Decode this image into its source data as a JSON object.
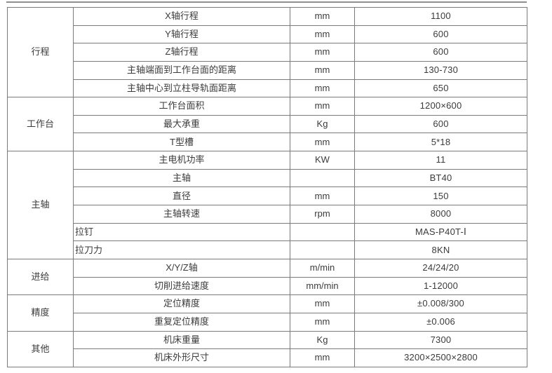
{
  "colors": {
    "background": "#ffffff",
    "border_inner": "#7b7b7b",
    "border_outer": "#5f5f5f",
    "text": "#3b3b3b"
  },
  "table": {
    "sections": [
      {
        "category": "行程",
        "rows": [
          {
            "parameter": "X轴行程",
            "unit": "mm",
            "value": "1100"
          },
          {
            "parameter": "Y轴行程",
            "unit": "mm",
            "value": "600"
          },
          {
            "parameter": "Z轴行程",
            "unit": "mm",
            "value": "600"
          },
          {
            "parameter": "主轴端面到工作台面的距离",
            "unit": "mm",
            "value": "130-730"
          },
          {
            "parameter": "主轴中心到立柱导轨面距离",
            "unit": "mm",
            "value": "650"
          }
        ]
      },
      {
        "category": "工作台",
        "rows": [
          {
            "parameter": "工作台面积",
            "unit": "mm",
            "value": "1200×600"
          },
          {
            "parameter": "最大承重",
            "unit": "Kg",
            "value": "600"
          },
          {
            "parameter": "T型槽",
            "unit": "mm",
            "value": "5*18"
          }
        ]
      },
      {
        "category": "主轴",
        "rows": [
          {
            "parameter": "主电机功率",
            "unit": "KW",
            "value": "11"
          },
          {
            "parameter": "主轴",
            "unit": "",
            "value": "BT40"
          },
          {
            "parameter": "直径",
            "unit": "mm",
            "value": "150"
          },
          {
            "parameter": "主轴转速",
            "unit": "rpm",
            "value": "8000"
          },
          {
            "parameter": "拉钉",
            "unit": "",
            "value": "MAS-P40T-Ⅰ",
            "param_align": "left"
          },
          {
            "parameter": "拉刀力",
            "unit": "",
            "value": "8KN",
            "param_align": "left"
          }
        ]
      },
      {
        "category": "进给",
        "rows": [
          {
            "parameter": "X/Y/Z轴",
            "unit": "m/min",
            "value": "24/24/20"
          },
          {
            "parameter": "切削进给速度",
            "unit": "mm/min",
            "value": "1-12000"
          }
        ]
      },
      {
        "category": "精度",
        "rows": [
          {
            "parameter": "定位精度",
            "unit": "mm",
            "value": "±0.008/300"
          },
          {
            "parameter": "重复定位精度",
            "unit": "mm",
            "value": "±0.006"
          }
        ]
      },
      {
        "category": "其他",
        "rows": [
          {
            "parameter": "机床重量",
            "unit": "Kg",
            "value": "7300"
          },
          {
            "parameter": "机床外形尺寸",
            "unit": "mm",
            "value": "3200×2500×2800"
          }
        ]
      }
    ]
  }
}
